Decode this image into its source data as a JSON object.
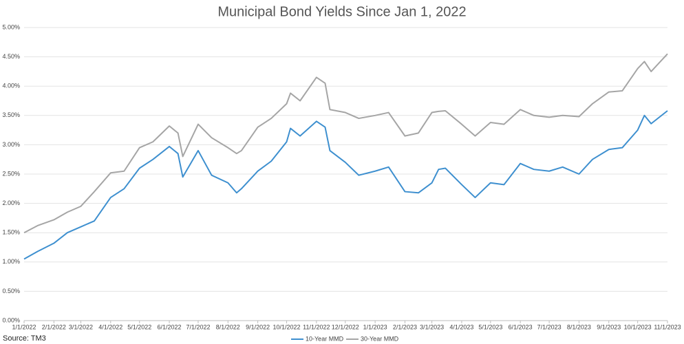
{
  "chart_data": {
    "type": "line",
    "title": "Municipal Bond Yields Since Jan 1, 2022",
    "source": "Source: TM3",
    "x": [
      "1/1/2022",
      "1/15/2022",
      "2/1/2022",
      "2/15/2022",
      "3/1/2022",
      "3/15/2022",
      "4/1/2022",
      "4/15/2022",
      "5/1/2022",
      "5/15/2022",
      "6/1/2022",
      "6/10/2022",
      "6/15/2022",
      "7/1/2022",
      "7/15/2022",
      "8/1/2022",
      "8/10/2022",
      "8/15/2022",
      "9/1/2022",
      "9/15/2022",
      "10/1/2022",
      "10/5/2022",
      "10/15/2022",
      "11/1/2022",
      "11/10/2022",
      "11/15/2022",
      "12/1/2022",
      "12/15/2022",
      "1/1/2023",
      "1/15/2023",
      "2/1/2023",
      "2/15/2023",
      "3/1/2023",
      "3/8/2023",
      "3/15/2023",
      "4/1/2023",
      "4/15/2023",
      "5/1/2023",
      "5/15/2023",
      "6/1/2023",
      "6/15/2023",
      "7/1/2023",
      "7/15/2023",
      "8/1/2023",
      "8/15/2023",
      "9/1/2023",
      "9/15/2023",
      "10/1/2023",
      "10/8/2023",
      "10/15/2023",
      "11/1/2023"
    ],
    "series": [
      {
        "name": "10-Year MMD",
        "color": "#3d8fcf",
        "values": [
          1.05,
          1.18,
          1.32,
          1.5,
          1.6,
          1.7,
          2.1,
          2.25,
          2.6,
          2.75,
          2.97,
          2.85,
          2.45,
          2.9,
          2.48,
          2.35,
          2.18,
          2.25,
          2.55,
          2.72,
          3.05,
          3.28,
          3.15,
          3.4,
          3.3,
          2.9,
          2.7,
          2.48,
          2.55,
          2.62,
          2.2,
          2.18,
          2.35,
          2.58,
          2.6,
          2.32,
          2.1,
          2.35,
          2.32,
          2.68,
          2.58,
          2.55,
          2.62,
          2.5,
          2.75,
          2.92,
          2.95,
          3.25,
          3.5,
          3.36,
          3.58
        ]
      },
      {
        "name": "30-Year MMD",
        "color": "#a5a5a5",
        "values": [
          1.5,
          1.62,
          1.72,
          1.85,
          1.95,
          2.2,
          2.52,
          2.55,
          2.95,
          3.05,
          3.32,
          3.2,
          2.8,
          3.35,
          3.12,
          2.95,
          2.85,
          2.9,
          3.3,
          3.45,
          3.7,
          3.88,
          3.75,
          4.15,
          4.05,
          3.6,
          3.55,
          3.45,
          3.5,
          3.55,
          3.15,
          3.2,
          3.55,
          3.57,
          3.58,
          3.35,
          3.15,
          3.38,
          3.35,
          3.6,
          3.5,
          3.47,
          3.5,
          3.48,
          3.7,
          3.9,
          3.92,
          4.3,
          4.42,
          4.25,
          4.55
        ]
      }
    ],
    "xlim": [
      "1/1/2022",
      "11/1/2023"
    ],
    "xticks": [
      "1/1/2022",
      "2/1/2022",
      "3/1/2022",
      "4/1/2022",
      "5/1/2022",
      "6/1/2022",
      "7/1/2022",
      "8/1/2022",
      "9/1/2022",
      "10/1/2022",
      "11/1/2022",
      "12/1/2022",
      "1/1/2023",
      "2/1/2023",
      "3/1/2023",
      "4/1/2023",
      "5/1/2023",
      "6/1/2023",
      "7/1/2023",
      "8/1/2023",
      "9/1/2023",
      "10/1/2023",
      "11/1/2023"
    ],
    "ylim": [
      0,
      5
    ],
    "yticks": [
      {
        "value": 0,
        "label": "0.00%"
      },
      {
        "value": 0.5,
        "label": "0.50%"
      },
      {
        "value": 1,
        "label": "1.00%"
      },
      {
        "value": 1.5,
        "label": "1.50%"
      },
      {
        "value": 2,
        "label": "2.00%"
      },
      {
        "value": 2.5,
        "label": "2.50%"
      },
      {
        "value": 3,
        "label": "3.00%"
      },
      {
        "value": 3.5,
        "label": "3.50%"
      },
      {
        "value": 4,
        "label": "4.00%"
      },
      {
        "value": 4.5,
        "label": "4.50%"
      },
      {
        "value": 5,
        "label": "5.00%"
      }
    ],
    "grid": true,
    "legend": "bottom"
  }
}
